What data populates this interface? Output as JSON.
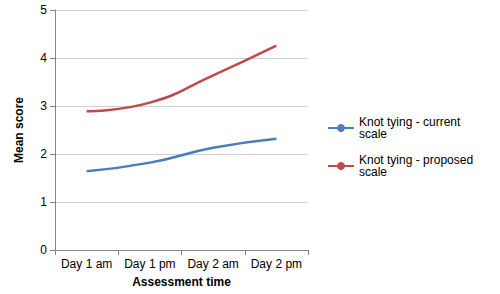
{
  "chart_data": {
    "type": "line",
    "x_label": "Assessment time",
    "y_label": "Mean score",
    "categories": [
      "Day 1 am",
      "Day 1 pm",
      "Day 2 am",
      "Day 2 pm"
    ],
    "series": [
      {
        "name": "Knot tying - current scale",
        "color": "#4a7ebb",
        "values": [
          1.64,
          1.82,
          2.13,
          2.32
        ]
      },
      {
        "name": "Knot tying - proposed scale",
        "color": "#be4b48",
        "values": [
          2.89,
          3.07,
          3.64,
          4.26
        ]
      }
    ],
    "ylim": [
      0,
      5
    ],
    "yticks": [
      0,
      1,
      2,
      3,
      4,
      5
    ],
    "grid": true,
    "legend": "right"
  }
}
